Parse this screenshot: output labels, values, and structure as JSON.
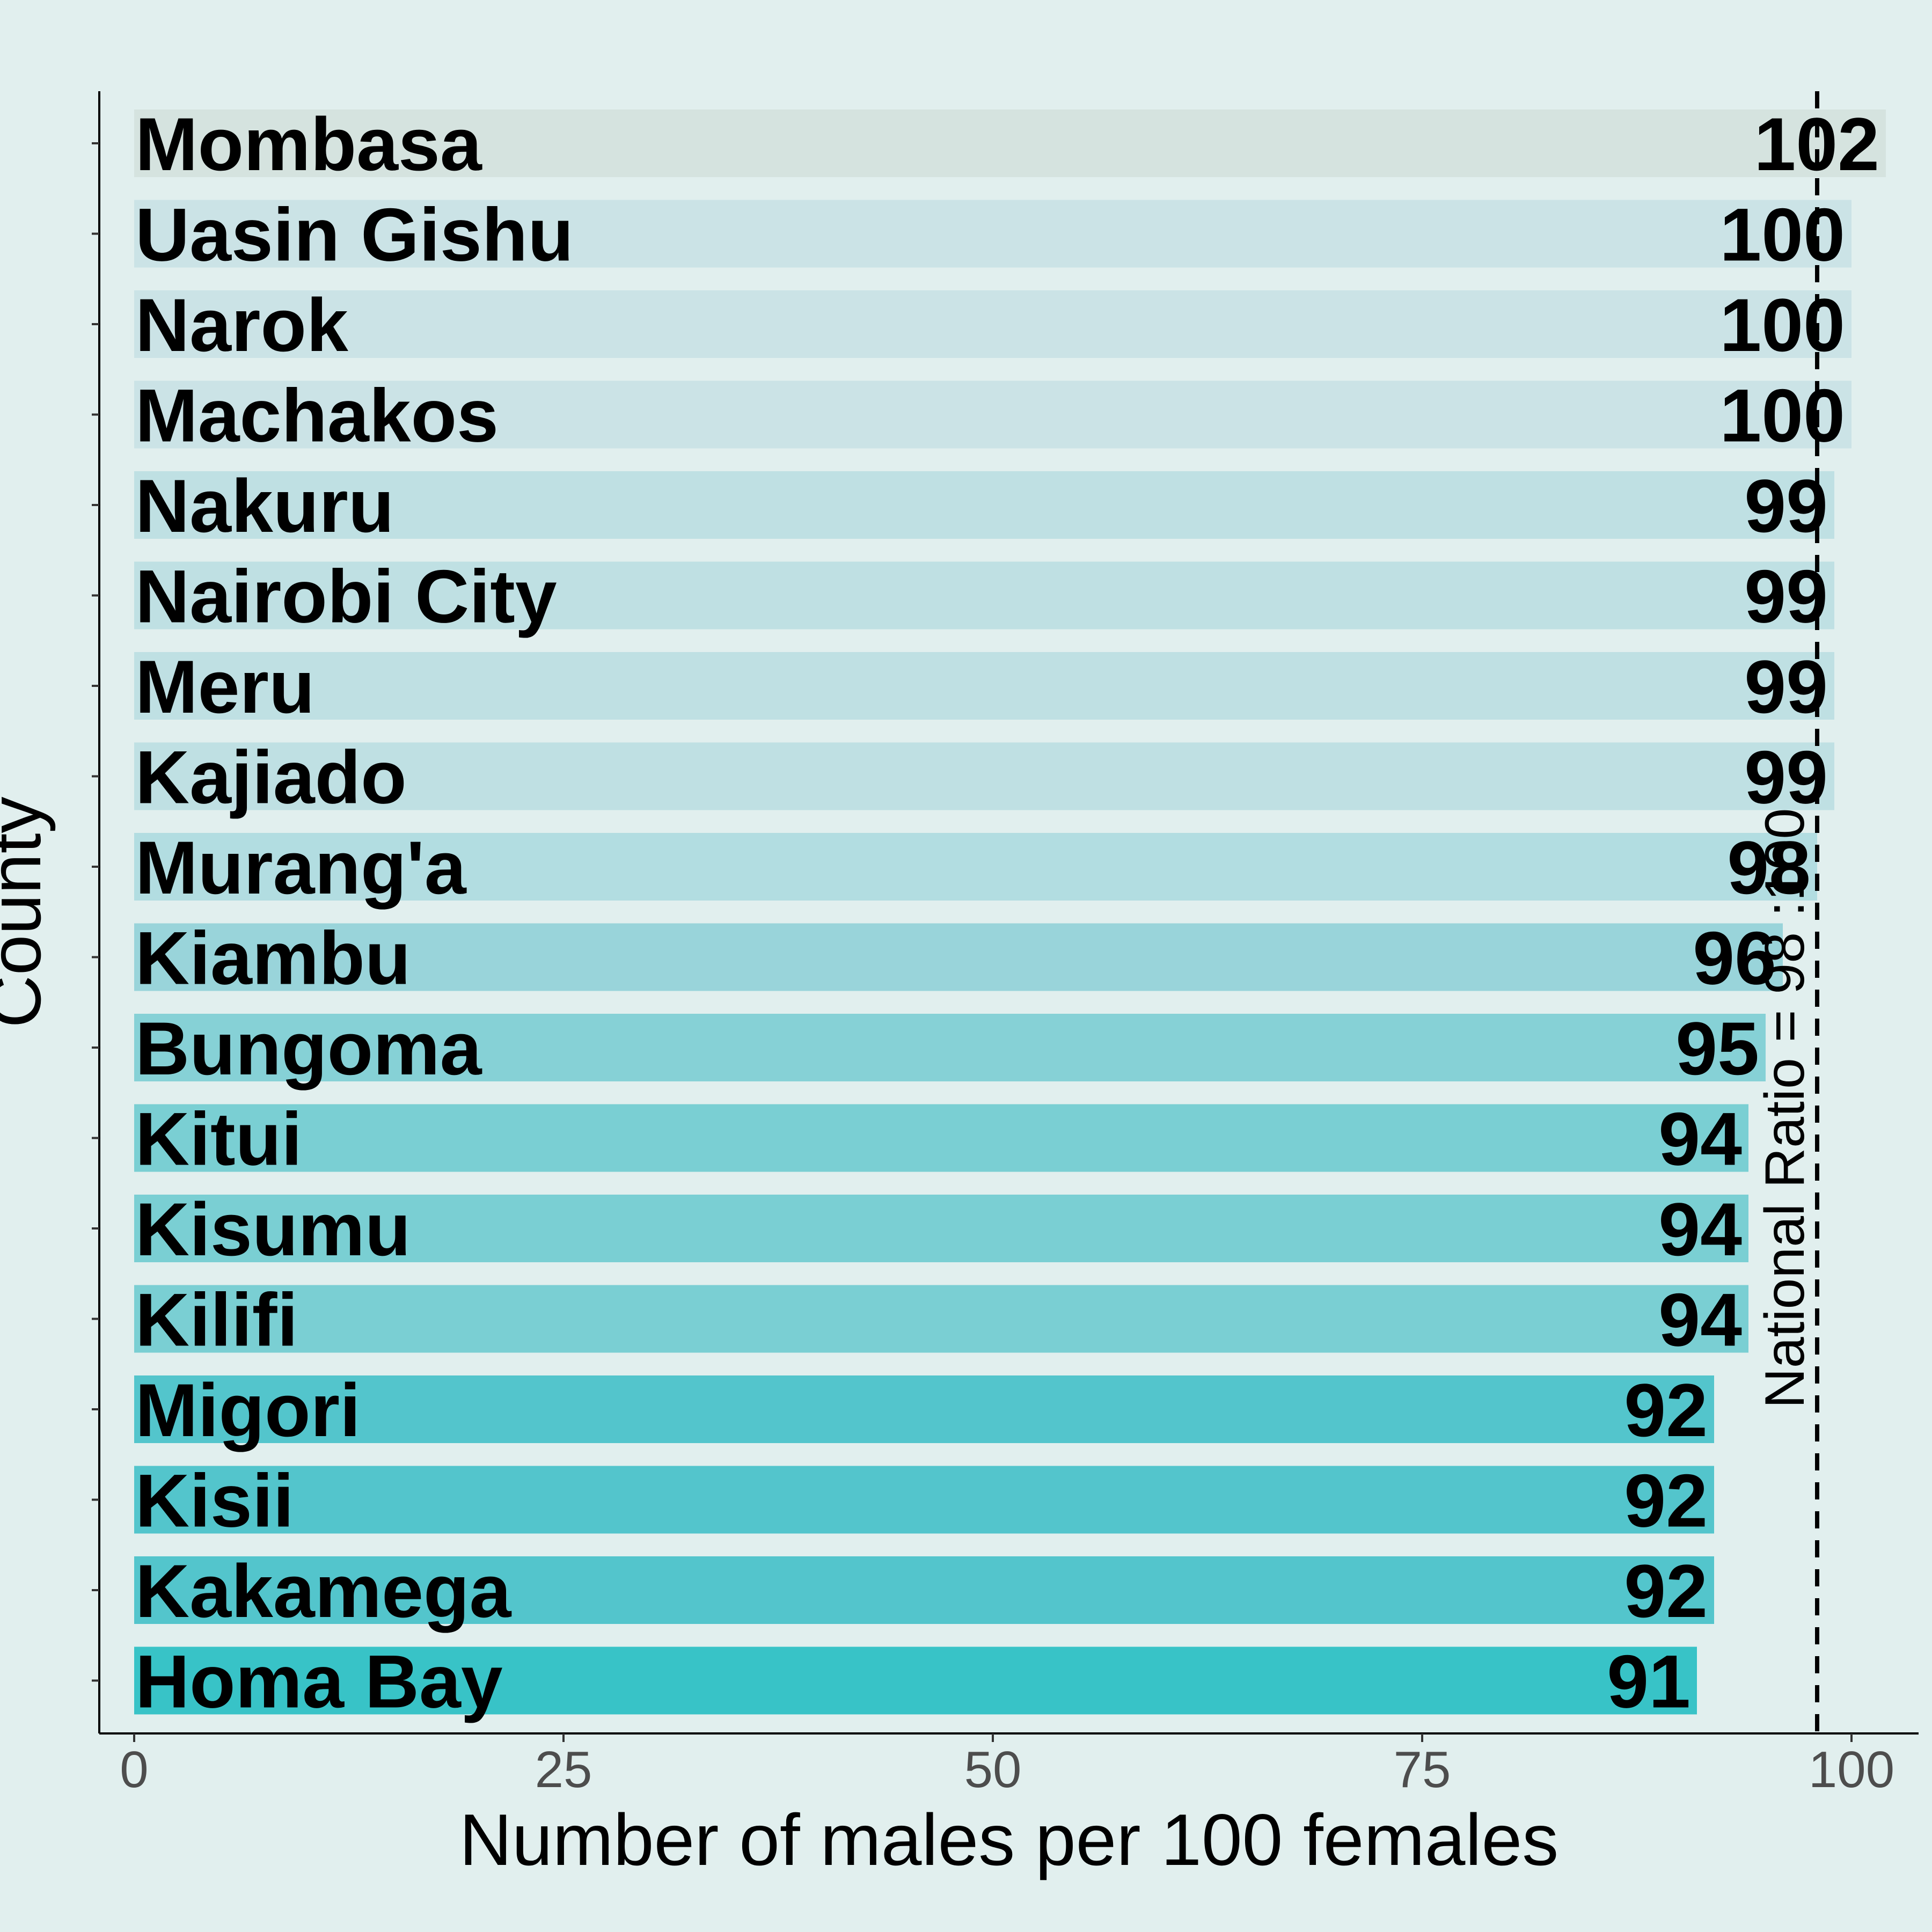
{
  "chart_data": {
    "type": "bar",
    "orientation": "horizontal",
    "xlabel": "Number of males per 100 females",
    "ylabel": "County",
    "xlim": [
      0,
      103
    ],
    "x_ticks": [
      0,
      25,
      50,
      75,
      100
    ],
    "grid": false,
    "categories": [
      "Mombasa",
      "Uasin Gishu",
      "Narok",
      "Machakos",
      "Nakuru",
      "Nairobi City",
      "Meru",
      "Kajiado",
      "Murang'a",
      "Kiambu",
      "Bungoma",
      "Kitui",
      "Kisumu",
      "Kilifi",
      "Migori",
      "Kisii",
      "Kakamega",
      "Homa Bay"
    ],
    "values": [
      102,
      100,
      100,
      100,
      99,
      99,
      99,
      99,
      98,
      96,
      95,
      94,
      94,
      94,
      92,
      92,
      92,
      91
    ],
    "data_labels": [
      "102",
      "100",
      "100",
      "100",
      "99",
      "99",
      "99",
      "99",
      "98",
      "96",
      "95",
      "94",
      "94",
      "94",
      "92",
      "92",
      "92",
      "91"
    ],
    "colors": [
      "#d5e3df",
      "#cbe3e6",
      "#cbe3e6",
      "#cbe3e6",
      "#bfe0e3",
      "#bfe0e3",
      "#bfe0e3",
      "#bfe0e3",
      "#b2dde1",
      "#99d4da",
      "#86d1d6",
      "#7acfd3",
      "#7acfd3",
      "#7acfd3",
      "#53c5cc",
      "#53c5cc",
      "#53c5cc",
      "#38c3c7"
    ],
    "reference_line": {
      "value": 98,
      "label": "National Ratio = 98 :100",
      "style": "dashed"
    }
  }
}
